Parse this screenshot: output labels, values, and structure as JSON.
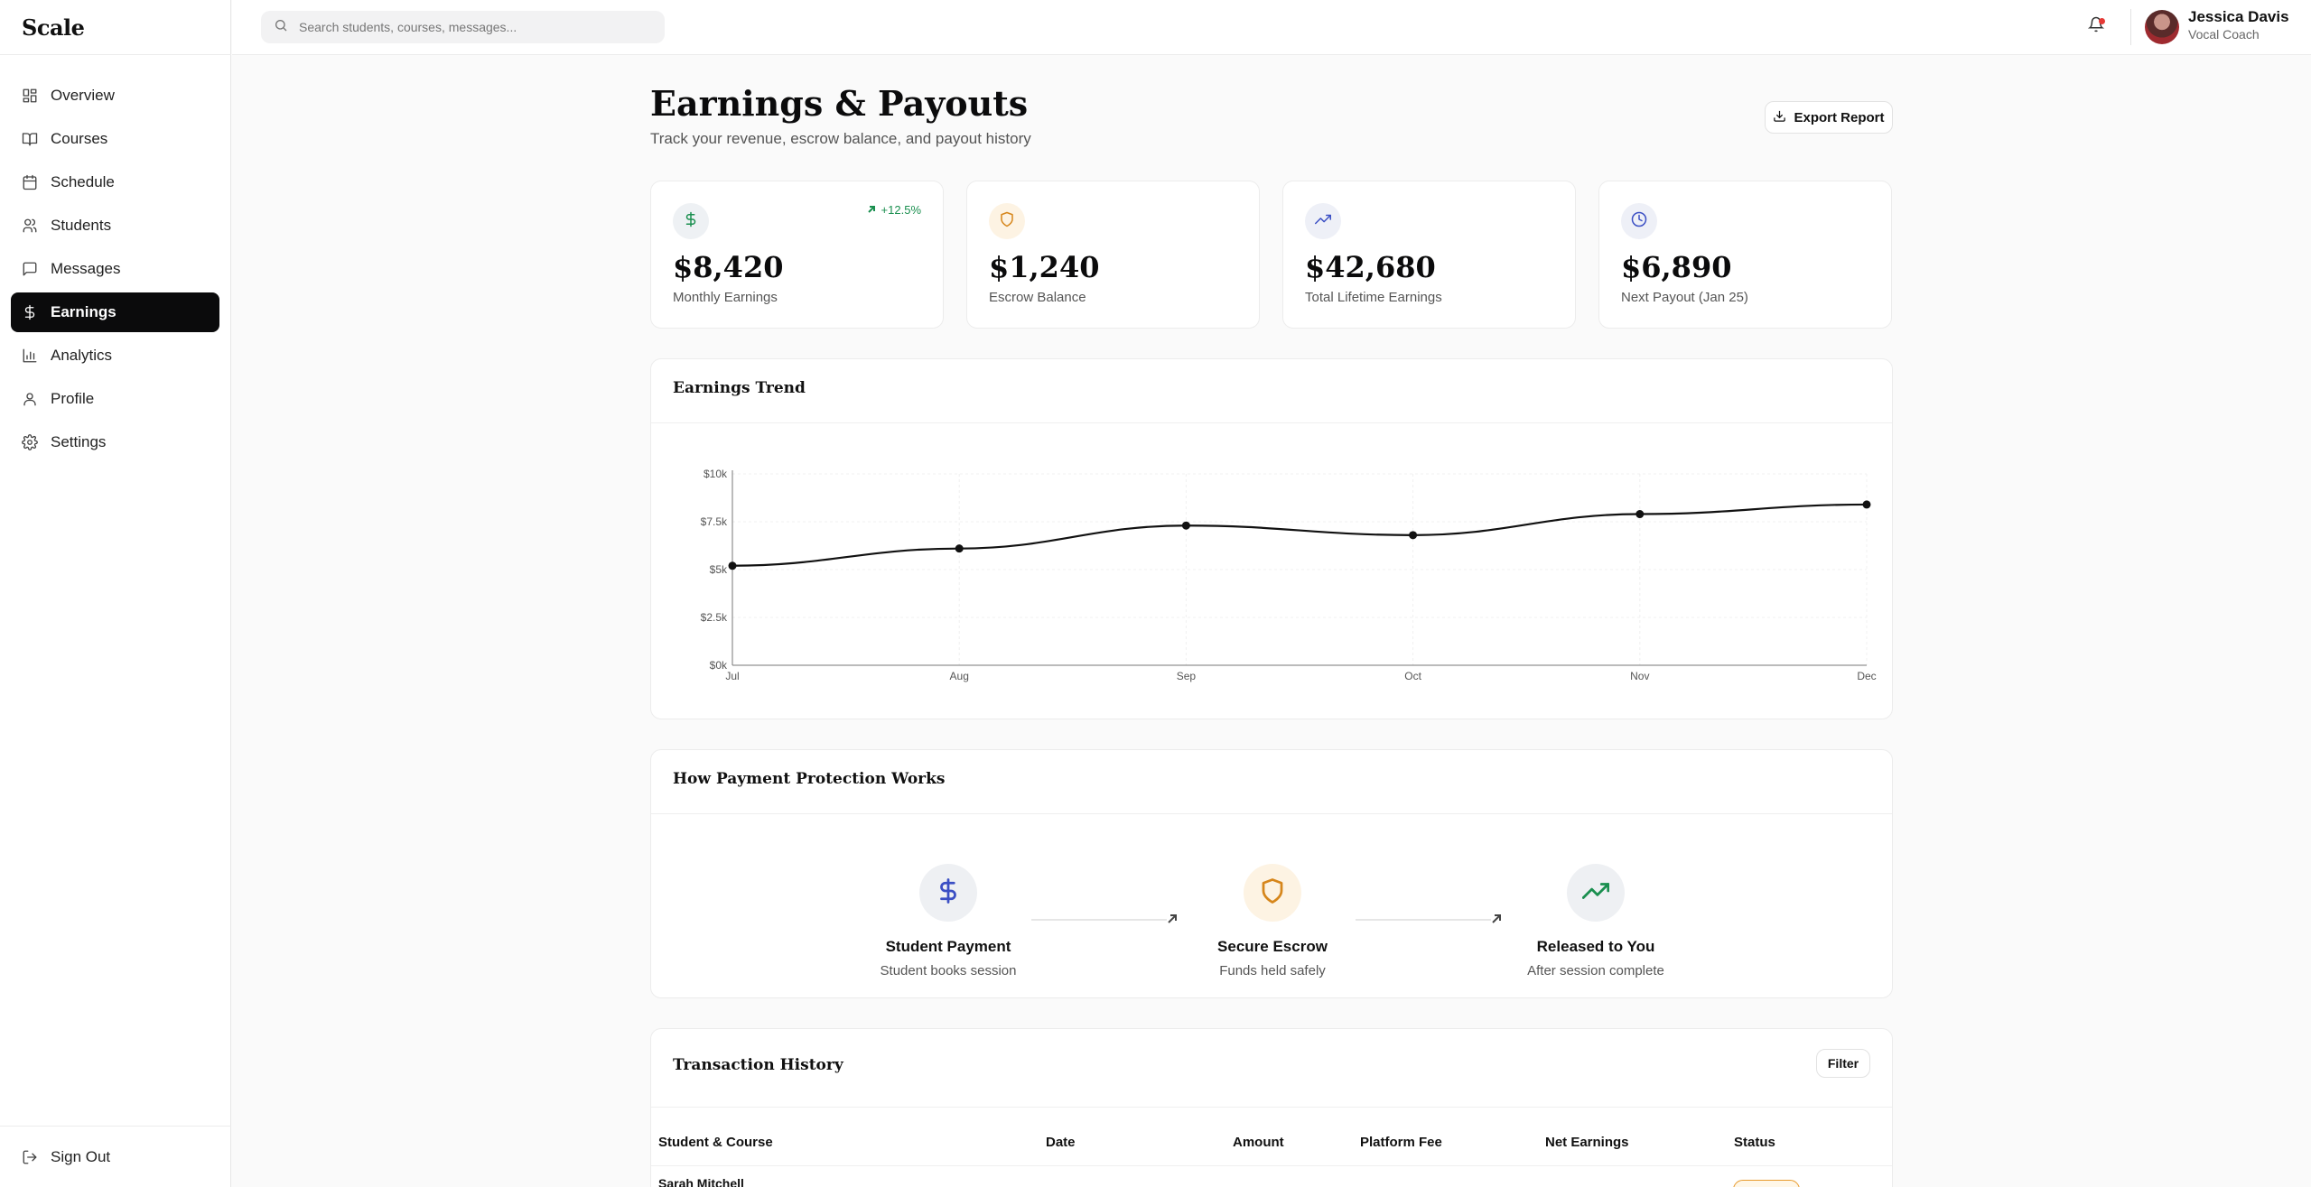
{
  "app": {
    "logo": "Scale"
  },
  "sidebar": {
    "items": [
      {
        "label": "Overview",
        "icon": "grid-icon",
        "active": false
      },
      {
        "label": "Courses",
        "icon": "book-icon",
        "active": false
      },
      {
        "label": "Schedule",
        "icon": "calendar-icon",
        "active": false
      },
      {
        "label": "Students",
        "icon": "users-icon",
        "active": false
      },
      {
        "label": "Messages",
        "icon": "message-icon",
        "active": false
      },
      {
        "label": "Earnings",
        "icon": "dollar-icon",
        "active": true
      },
      {
        "label": "Analytics",
        "icon": "bar-chart-icon",
        "active": false
      },
      {
        "label": "Profile",
        "icon": "user-icon",
        "active": false
      },
      {
        "label": "Settings",
        "icon": "gear-icon",
        "active": false
      }
    ],
    "signout_label": "Sign Out"
  },
  "header": {
    "search_placeholder": "Search students, courses, messages...",
    "user_name": "Jessica Davis",
    "user_role": "Vocal Coach",
    "has_notification": true
  },
  "page": {
    "title": "Earnings & Payouts",
    "subtitle": "Track your revenue, escrow balance, and payout history",
    "export_label": "Export Report"
  },
  "stats": [
    {
      "value": "$8,420",
      "label": "Monthly Earnings",
      "trend": "+12.5%",
      "icon": "dollar-icon",
      "accent": "#1a8f4f",
      "bg": "#eef1f4"
    },
    {
      "value": "$1,240",
      "label": "Escrow Balance",
      "icon": "shield-icon",
      "accent": "#d6861b",
      "bg": "#fdf3e3"
    },
    {
      "value": "$42,680",
      "label": "Total Lifetime Earnings",
      "icon": "trending-up-icon",
      "accent": "#3b4fc4",
      "bg": "#eef0f7"
    },
    {
      "value": "$6,890",
      "label": "Next Payout (Jan 25)",
      "icon": "clock-icon",
      "accent": "#3b4fc4",
      "bg": "#eef0f7"
    }
  ],
  "trend_card": {
    "title": "Earnings Trend"
  },
  "chart_data": {
    "type": "line",
    "title": "Earnings Trend",
    "categories": [
      "Jul",
      "Aug",
      "Sep",
      "Oct",
      "Nov",
      "Dec"
    ],
    "series": [
      {
        "values": [
          5200,
          6100,
          7300,
          6800,
          7900,
          8400
        ]
      }
    ],
    "y_ticks": [
      "$0k",
      "$2.5k",
      "$5k",
      "$7.5k",
      "$10k"
    ],
    "ylim": [
      0,
      10000
    ],
    "grid": true,
    "line_color": "#111111"
  },
  "protection": {
    "title": "How Payment Protection Works",
    "steps": [
      {
        "title": "Student Payment",
        "subtitle": "Student books session",
        "icon": "dollar-icon",
        "accent": "#3b4fc4",
        "bg": "#eef0f3"
      },
      {
        "title": "Secure Escrow",
        "subtitle": "Funds held safely",
        "icon": "shield-icon",
        "accent": "#d6861b",
        "bg": "#fdf3e3"
      },
      {
        "title": "Released to You",
        "subtitle": "After session complete",
        "icon": "trending-up-icon",
        "accent": "#1a8f4f",
        "bg": "#eef0f3"
      }
    ]
  },
  "transactions": {
    "title": "Transaction History",
    "filter_label": "Filter",
    "columns": [
      "Student & Course",
      "Date",
      "Amount",
      "Platform Fee",
      "Net Earnings",
      "Status"
    ],
    "rows": [
      {
        "student": "Sarah Mitchell"
      }
    ]
  }
}
